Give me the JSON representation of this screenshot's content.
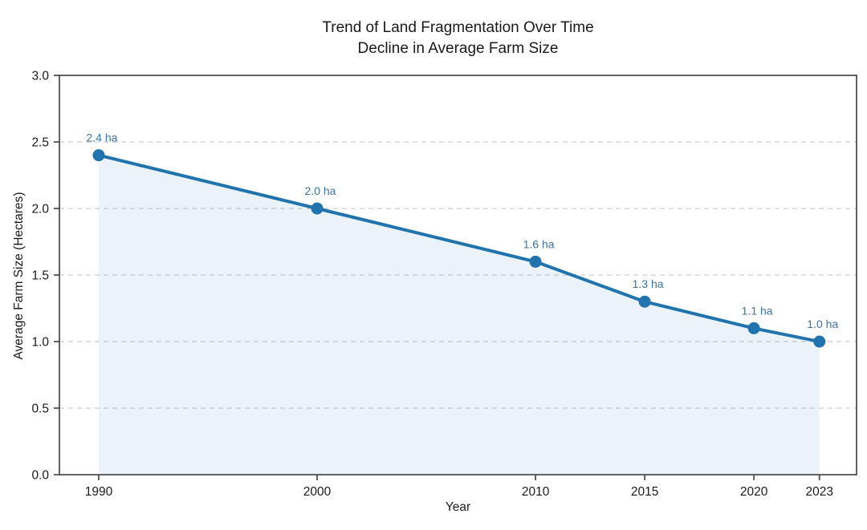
{
  "chart_data": {
    "type": "line",
    "title_line1": "Trend of Land Fragmentation Over Time",
    "title_line2": "Decline in Average Farm Size",
    "xlabel": "Year",
    "ylabel": "Average Farm Size (Hectares)",
    "x": [
      1990,
      2000,
      2010,
      2015,
      2020,
      2023
    ],
    "values": [
      2.4,
      2.0,
      1.6,
      1.3,
      1.1,
      1.0
    ],
    "point_labels": [
      "2.4 ha",
      "2.0 ha",
      "1.6 ha",
      "1.3 ha",
      "1.1 ha",
      "1.0 ha"
    ],
    "x_tick_labels": [
      "1990",
      "2000",
      "2010",
      "2015",
      "2020",
      "2023"
    ],
    "y_ticks": [
      0.0,
      0.5,
      1.0,
      1.5,
      2.0,
      2.5,
      3.0
    ],
    "y_tick_labels": [
      "0.0",
      "0.5",
      "1.0",
      "1.5",
      "2.0",
      "2.5",
      "3.0"
    ],
    "xlim": [
      1988.2,
      2024.7
    ],
    "ylim": [
      0.0,
      3.0
    ],
    "grid": "horizontal-dashed",
    "legend": "none",
    "area_fill_to_zero": true,
    "colors": {
      "line": "#2173ae",
      "marker": "#2173ae",
      "area_fill": "#1f77b4",
      "area_opacity": "0.09",
      "point_label": "#40739f",
      "grid": "#cccccc",
      "spine": "#515151",
      "tick_text": "#1a1a1a"
    }
  }
}
